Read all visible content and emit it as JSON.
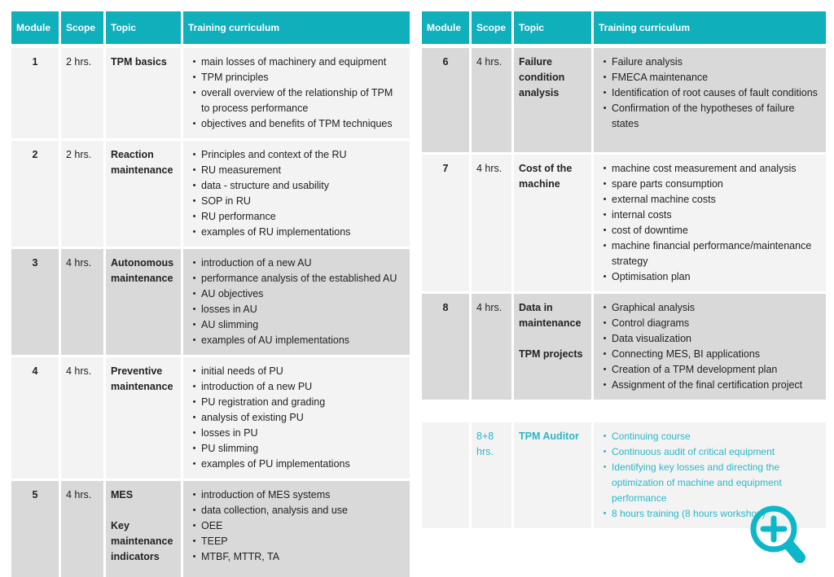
{
  "colors": {
    "header_bg": "#0fafbc",
    "header_text": "#ffffff",
    "row_light": "#f3f3f3",
    "row_dark": "#d9d9d9",
    "accent_text": "#2bb7c6",
    "body_text": "#222222",
    "icon_teal": "#0eb7c8"
  },
  "icons": {
    "zoom_in": "magnifier-with-plus"
  },
  "tables": [
    {
      "name": "modules-1-5",
      "headers": [
        "Module",
        "Scope",
        "Topic",
        "Training curriculum"
      ],
      "rows": [
        {
          "module": "1",
          "scope": "2 hrs.",
          "shade": "light",
          "accent": false,
          "topics": [
            "TPM basics"
          ],
          "items": [
            "main losses of machinery and equipment",
            "TPM principles",
            "overall overview of the relationship of TPM to process performance",
            "objectives and benefits of TPM techniques"
          ]
        },
        {
          "module": "2",
          "scope": "2 hrs.",
          "shade": "light",
          "accent": false,
          "topics": [
            "Reaction maintenance"
          ],
          "items": [
            "Principles and context of the RU",
            "RU measurement",
            "data - structure and usability",
            "SOP in RU",
            "RU performance",
            "examples of RU implementations"
          ]
        },
        {
          "module": "3",
          "scope": "4 hrs.",
          "shade": "dark",
          "accent": false,
          "topics": [
            "Autonomous maintenance"
          ],
          "items": [
            "introduction of a new AU",
            "performance analysis of the established AU",
            "AU objectives",
            "losses in AU",
            "AU slimming",
            "examples of AU implementations"
          ]
        },
        {
          "module": "4",
          "scope": "4 hrs.",
          "shade": "light",
          "accent": false,
          "topics": [
            "Preventive maintenance"
          ],
          "items": [
            "initial needs of PU",
            "introduction of a new PU",
            "PU registration and grading",
            "analysis of existing PU",
            "losses in PU",
            "PU slimming",
            "examples of PU implementations"
          ]
        },
        {
          "module": "5",
          "scope": "4 hrs.",
          "shade": "dark",
          "accent": false,
          "topics": [
            "MES",
            "Key maintenance indicators"
          ],
          "items": [
            "introduction of MES systems",
            "data collection, analysis and use",
            "OEE",
            "TEEP",
            "MTBF, MTTR, TA"
          ]
        }
      ]
    },
    {
      "name": "modules-6-8",
      "headers": [
        "Module",
        "Scope",
        "Topic",
        "Training curriculum"
      ],
      "rows": [
        {
          "module": "6",
          "scope": "4 hrs.",
          "shade": "dark",
          "accent": false,
          "topics": [
            "Failure condition analysis"
          ],
          "items": [
            "Failure analysis",
            "FMECA maintenance",
            "Identification of root causes of fault conditions",
            "Confirmation of the hypotheses of failure states"
          ]
        },
        {
          "module": "7",
          "scope": "4 hrs.",
          "shade": "light",
          "accent": false,
          "topics": [
            "Cost of the machine"
          ],
          "items": [
            "machine cost measurement and analysis",
            "spare parts consumption",
            "external machine costs",
            "internal costs",
            "cost of downtime",
            "machine financial performance/maintenance strategy",
            "Optimisation plan"
          ]
        },
        {
          "module": "8",
          "scope": "4 hrs.",
          "shade": "dark",
          "accent": false,
          "topics": [
            "Data in maintenance",
            "TPM projects"
          ],
          "items": [
            "Graphical analysis",
            "Control diagrams",
            "Data visualization",
            "Connecting MES, BI applications",
            "Creation of a TPM development plan",
            "Assignment of the final certification project"
          ]
        },
        {
          "module": "",
          "scope": "8+8 hrs.",
          "shade": "light",
          "accent": true,
          "topics": [
            "TPM Auditor"
          ],
          "items": [
            "Continuing course",
            "Continuous audit of critical equipment",
            "Identifying key losses and directing the optimization of machine and equipment performance",
            "8 hours training (8 hours workshop)"
          ]
        }
      ]
    }
  ]
}
